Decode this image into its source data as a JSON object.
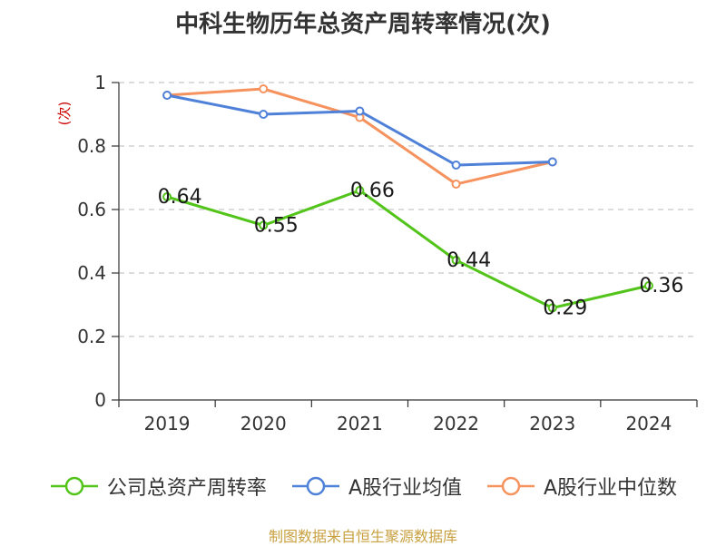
{
  "chart_data": {
    "type": "line",
    "title": "中科生物历年总资产周转率情况(次)",
    "ylabel": "(次)",
    "xlabel": "",
    "ylim": [
      0,
      1
    ],
    "yticks": [
      0,
      0.2,
      0.4,
      0.6,
      0.8,
      1
    ],
    "ytick_labels": [
      "0",
      "0.2",
      "0.4",
      "0.6",
      "0.8",
      "1"
    ],
    "categories": [
      "2019",
      "2020",
      "2021",
      "2022",
      "2023",
      "2024"
    ],
    "grid": true,
    "legend_position": "bottom",
    "series": [
      {
        "name": "公司总资产周转率",
        "color": "#52c41a",
        "values": [
          0.64,
          0.55,
          0.66,
          0.44,
          0.29,
          0.36
        ],
        "labels": [
          "0.64",
          "0.55",
          "0.66",
          "0.44",
          "0.29",
          "0.36"
        ]
      },
      {
        "name": "A股行业均值",
        "color": "#4f81d9",
        "values": [
          0.96,
          0.9,
          0.91,
          0.74,
          0.75,
          null
        ]
      },
      {
        "name": "A股行业中位数",
        "color": "#f5925e",
        "values": [
          0.96,
          0.98,
          0.89,
          0.68,
          0.75,
          null
        ]
      }
    ]
  },
  "footer": {
    "source": "制图数据来自恒生聚源数据库"
  }
}
